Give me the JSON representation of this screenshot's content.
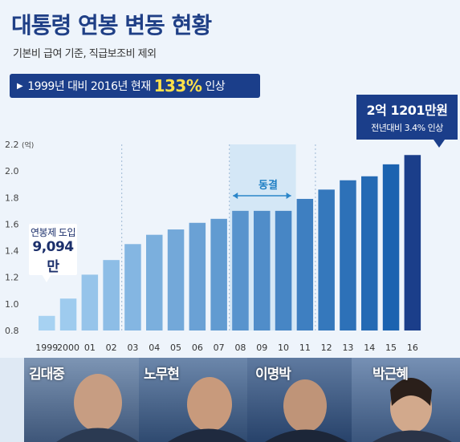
{
  "title": "대통령 연봉 변동 현황",
  "subtitle": "기본비 급여 기준, 직급보조비 제외",
  "banner": {
    "pre": "1999년 대비 2016년 현재",
    "pct": "133%",
    "post": "인상"
  },
  "highlight": {
    "value": "2억 1201만원",
    "sub": "전년대비 3.4% 인상"
  },
  "first_label": {
    "line1": "연봉제 도입",
    "line2": "9,094만"
  },
  "freeze_label": "동결",
  "presidents": [
    "김대중",
    "노무현",
    "이명박",
    "박근혜"
  ],
  "colors": {
    "title": "#1f3f86",
    "accent": "#1b3e8a",
    "bar_light": "#a7d2f2",
    "bar_dark": "#1b63b0",
    "yellow": "#ffe14a"
  },
  "chart_data": {
    "type": "bar",
    "categories": [
      "1999",
      "2000",
      "01",
      "02",
      "03",
      "04",
      "05",
      "06",
      "07",
      "08",
      "09",
      "10",
      "11",
      "12",
      "13",
      "14",
      "15",
      "16"
    ],
    "values": [
      0.91,
      1.04,
      1.22,
      1.33,
      1.45,
      1.52,
      1.56,
      1.61,
      1.64,
      1.7,
      1.7,
      1.7,
      1.79,
      1.86,
      1.93,
      1.96,
      2.05,
      2.12
    ],
    "ylim": [
      0.8,
      2.2
    ],
    "yticks": [
      "0.8",
      "1.0",
      "1.2",
      "1.4",
      "1.6",
      "1.8",
      "2.0",
      "2.2"
    ],
    "yunit": "(억)"
  }
}
